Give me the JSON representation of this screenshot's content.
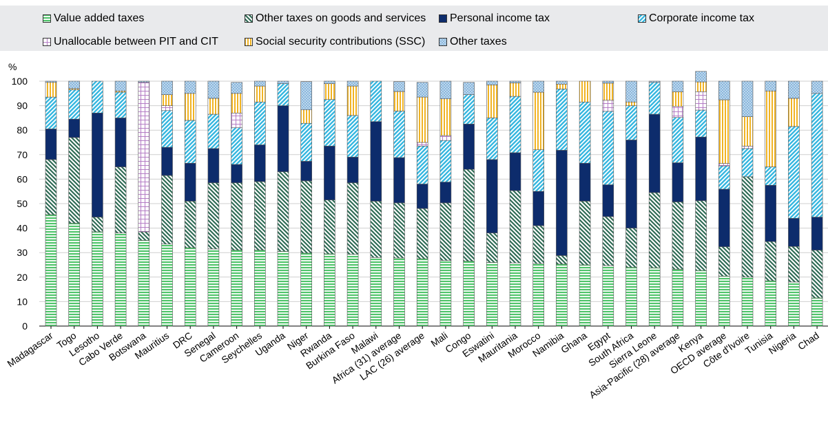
{
  "legend": {
    "items": [
      {
        "label": "Value added taxes",
        "key": "vat"
      },
      {
        "label": "Other taxes on goods and services",
        "key": "ogs"
      },
      {
        "label": "Personal income tax",
        "key": "pit"
      },
      {
        "label": "Corporate income tax",
        "key": "cit"
      },
      {
        "label": "Unallocable between PIT and CIT",
        "key": "unal"
      },
      {
        "label": "Social security contributions (SSC)",
        "key": "ssc"
      },
      {
        "label": "Other taxes",
        "key": "oth"
      }
    ]
  },
  "colors": {
    "vat": "#4fc46a",
    "ogs": "#2f6b55",
    "pit": "#0d2c6c",
    "cit": "#36b7e0",
    "unal": "#b37bc4",
    "ssc": "#f0b323",
    "oth": "#8ab7dd"
  },
  "chart_data": {
    "type": "bar",
    "stacked": true,
    "ylabel": "%",
    "ylim": [
      0,
      100
    ],
    "yticks": [
      0,
      10,
      20,
      30,
      40,
      50,
      60,
      70,
      80,
      90,
      100
    ],
    "grid": true,
    "legend_position": "top",
    "categories": [
      "Madagascar",
      "Togo",
      "Lesotho",
      "Cabo Verde",
      "Botswana",
      "Mauritius",
      "DRC",
      "Senegal",
      "Cameroon",
      "Seychelles",
      "Uganda",
      "Niger",
      "Rwanda",
      "Burkina Faso",
      "Malawi",
      "Africa (31) average",
      "LAC (26) average",
      "Mali",
      "Congo",
      "Eswatini",
      "Mauritania",
      "Morocco",
      "Namibia",
      "Ghana",
      "Egypt",
      "South Africa",
      "Sierra Leone",
      "Asia-Pacific (28) average",
      "Kenya",
      "OECD average",
      "Côte d'Ivoire",
      "Tunisia",
      "Nigeria",
      "Chad"
    ],
    "series": [
      {
        "name": "Value added taxes",
        "key": "vat",
        "values": [
          45.5,
          42,
          38.5,
          38,
          35,
          33.5,
          32,
          31.5,
          31,
          31,
          30.5,
          29.8,
          29.5,
          29.3,
          28,
          27.8,
          27.5,
          26.8,
          26.5,
          26,
          25.8,
          25.5,
          25.3,
          25,
          24.7,
          24,
          23.8,
          23.2,
          22.7,
          20.4,
          20,
          18.5,
          18,
          11.5
        ]
      },
      {
        "name": "Other taxes on goods and services",
        "key": "ogs",
        "values": [
          22.5,
          35,
          6,
          27,
          3.5,
          28,
          19,
          27,
          27.5,
          28,
          32.5,
          29.5,
          22,
          29.2,
          23,
          22.5,
          20.5,
          23.5,
          37.5,
          12,
          29.5,
          15.5,
          3.5,
          26,
          20,
          16,
          30.7,
          27.5,
          28.5,
          12,
          41,
          16,
          14.5,
          19.5
        ]
      },
      {
        "name": "Personal income tax",
        "key": "pit",
        "values": [
          12.5,
          7.5,
          42.5,
          20,
          0,
          11.5,
          15.5,
          14,
          7.5,
          15,
          27,
          8,
          22,
          10.5,
          32.5,
          18.5,
          10,
          8.5,
          18.5,
          30,
          15.5,
          14,
          43,
          15.5,
          13,
          36,
          32,
          16,
          26,
          23.5,
          0,
          23,
          11.5,
          13.5
        ]
      },
      {
        "name": "Corporate income tax",
        "key": "cit",
        "values": [
          13,
          12,
          13,
          10.5,
          0,
          15,
          17.5,
          14,
          15,
          17.5,
          9,
          15.5,
          19,
          17,
          16.5,
          19,
          15.5,
          17,
          12,
          17,
          23,
          17,
          25,
          25,
          30,
          14,
          13,
          18.5,
          11,
          9.5,
          11.5,
          7.5,
          37.5,
          50.5
        ]
      },
      {
        "name": "Unallocable between PIT and CIT",
        "key": "unal",
        "values": [
          0,
          0,
          0,
          0,
          61,
          2,
          0,
          0,
          6,
          0,
          0,
          0,
          0,
          0,
          0,
          0,
          1.5,
          2,
          0,
          0,
          0,
          0,
          0,
          0,
          4.5,
          0,
          0,
          4.5,
          7.5,
          1,
          1,
          0,
          0,
          0
        ]
      },
      {
        "name": "Social security contributions (SSC)",
        "key": "ssc",
        "values": [
          6,
          0.5,
          0,
          0.5,
          0,
          4.5,
          11,
          6.5,
          8,
          6.5,
          0,
          5.5,
          6.5,
          12,
          0,
          8,
          18.5,
          15,
          0,
          13.5,
          5.5,
          23.5,
          2,
          8.5,
          7,
          1.5,
          0,
          6,
          4,
          26,
          12,
          31,
          11.5,
          0
        ]
      },
      {
        "name": "Other taxes",
        "key": "oth",
        "values": [
          0.5,
          3,
          0,
          4,
          0.5,
          5.5,
          5,
          7,
          4.5,
          2,
          1,
          11.5,
          1,
          2,
          0,
          4,
          6,
          7.2,
          5,
          1.5,
          0.7,
          4.5,
          1.2,
          0,
          0.8,
          8.5,
          0.5,
          4.3,
          4.3,
          7.6,
          14.5,
          4,
          7,
          5
        ]
      }
    ]
  }
}
